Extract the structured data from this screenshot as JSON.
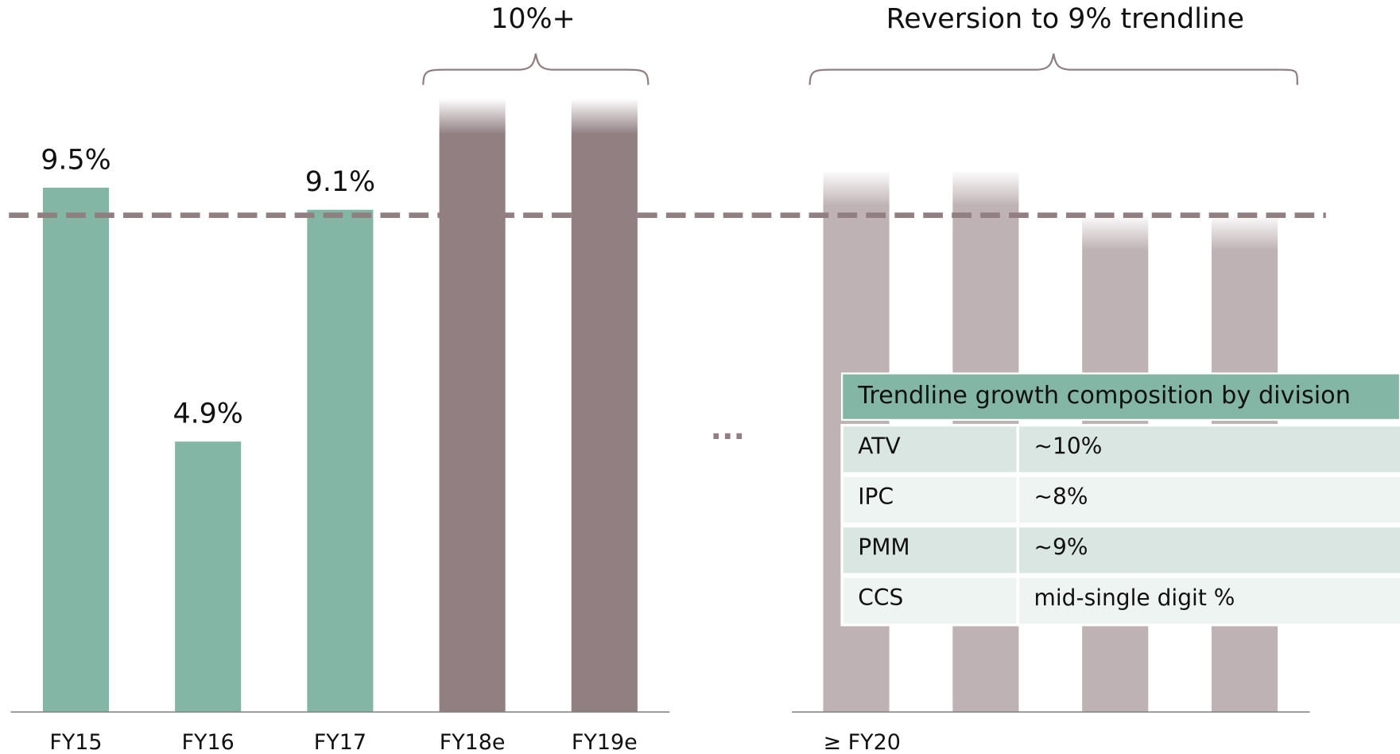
{
  "chart_data": {
    "type": "bar",
    "categories": [
      "FY15",
      "FY16",
      "FY17",
      "FY18e",
      "FY19e",
      "≥ FY20",
      null,
      null,
      null
    ],
    "values": [
      9.5,
      4.9,
      9.1,
      11.1,
      11.1,
      9.8,
      9.8,
      9,
      9
    ],
    "value_labels": [
      "9.5%",
      "4.9%",
      "9.1%",
      null,
      null,
      null,
      null,
      null,
      null
    ],
    "colors": [
      "#84b6a6",
      "#84b6a6",
      "#84b6a6",
      "#917f82",
      "#917f82",
      "#bfb2b4",
      "#bfb2b4",
      "#bfb2b4",
      "#bfb2b4"
    ],
    "ylim": [
      0,
      12.9
    ],
    "trendline": 9,
    "trendline_color": "#917f82",
    "annotations": [
      "10%+",
      "Reversion to 9% trendline",
      "..."
    ]
  },
  "table": {
    "title": "Trendline growth composition by division",
    "rows": [
      [
        "ATV",
        "~10%"
      ],
      [
        "IPC",
        "~8%"
      ],
      [
        "PMM",
        "~9%"
      ],
      [
        "CCS",
        "mid-single digit %"
      ]
    ]
  }
}
